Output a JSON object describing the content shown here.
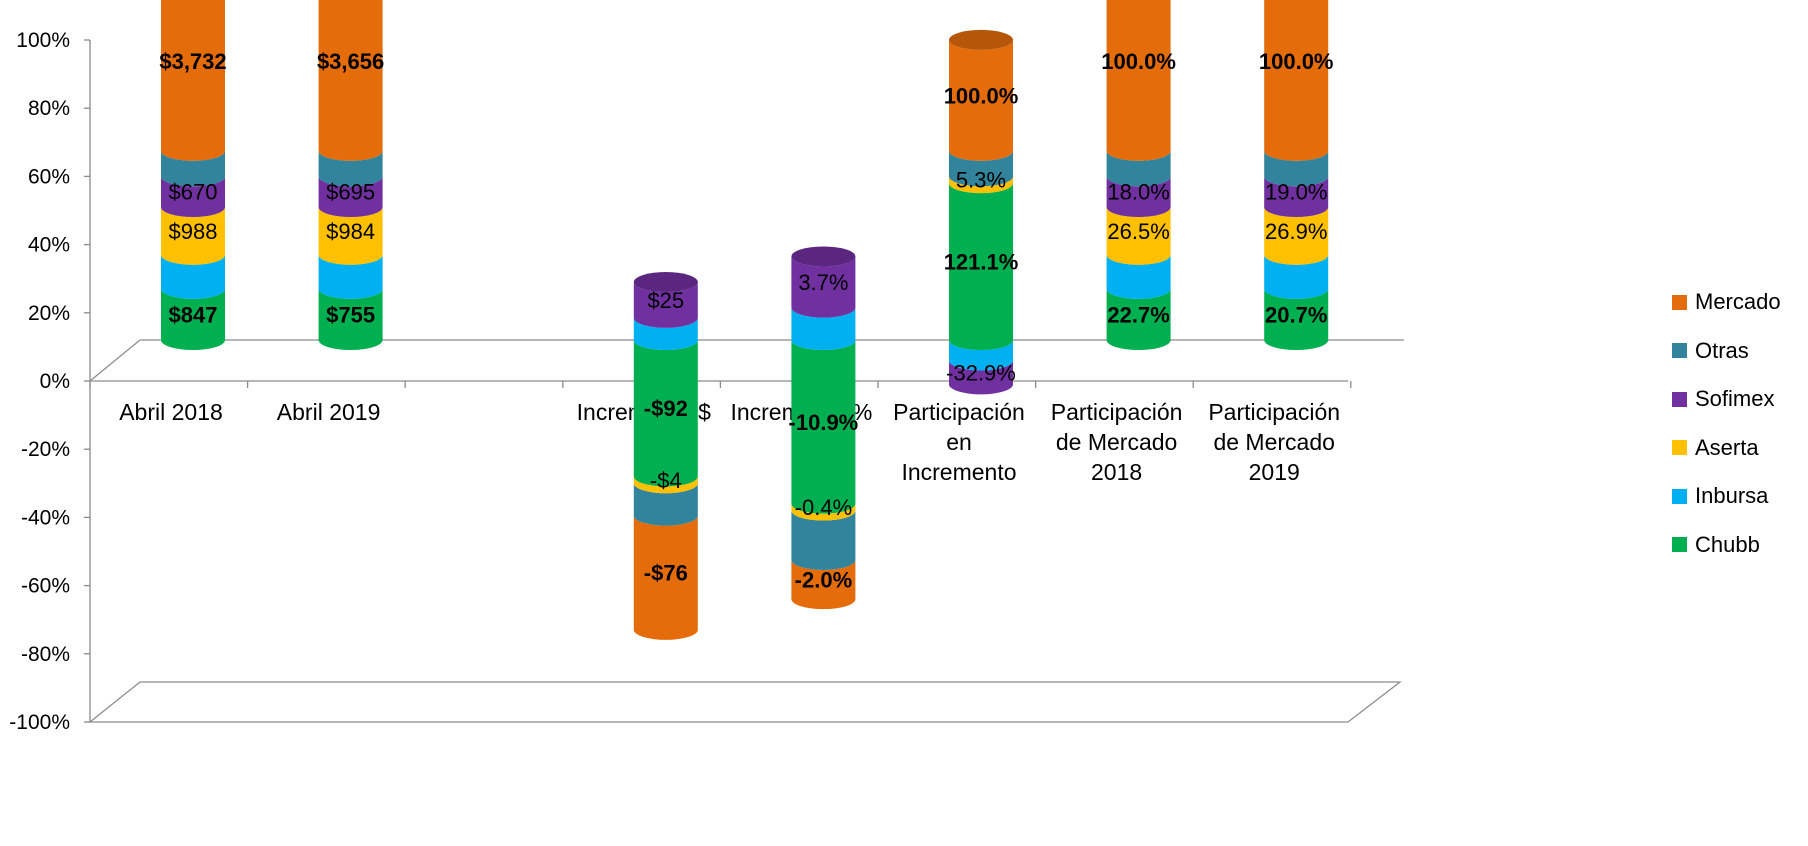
{
  "chart_data": {
    "type": "bar",
    "categories": [
      [
        "Abril 2018"
      ],
      [
        "Abril 2019"
      ],
      [
        ""
      ],
      [
        "Incremento $"
      ],
      [
        "Incremento %"
      ],
      [
        "Participación",
        "en",
        "Incremento"
      ],
      [
        "Participación",
        "de Mercado",
        "2018"
      ],
      [
        "Participación",
        "de Mercado",
        "2019"
      ]
    ],
    "y_ticks": [
      "100%",
      "80%",
      "60%",
      "40%",
      "20%",
      "0%",
      "-20%",
      "-40%",
      "-60%",
      "-80%",
      "-100%"
    ],
    "ylim": [
      -100,
      100
    ],
    "stacked": true,
    "series": [
      {
        "name": "Chubb",
        "color": "#00B050",
        "values": [
          15.0,
          15.0,
          null,
          -40.0,
          -48.0,
          46.0,
          15.0,
          15.0
        ]
      },
      {
        "name": "Inbursa",
        "color": "#00B0F0",
        "values": [
          10.0,
          10.0,
          null,
          6.5,
          9.5,
          -6.0,
          10.0,
          10.0
        ]
      },
      {
        "name": "Aserta",
        "color": "#FFC000",
        "values": [
          14.0,
          14.0,
          null,
          -2.0,
          -2.0,
          2.0,
          14.0,
          14.0
        ]
      },
      {
        "name": "Sofimex",
        "color": "#7030A0",
        "values": [
          9.0,
          9.0,
          null,
          10.5,
          15.0,
          -7.0,
          9.0,
          9.0
        ]
      },
      {
        "name": "Otras",
        "color": "#31849B",
        "values": [
          7.5,
          7.5,
          null,
          -9.5,
          -14.5,
          7.5,
          7.5,
          7.5
        ]
      },
      {
        "name": "Mercado",
        "color": "#E46C0A",
        "values": [
          52.5,
          52.5,
          null,
          -33.5,
          -11.5,
          32.5,
          52.5,
          52.5
        ]
      }
    ],
    "data_labels": [
      {
        "series": "Mercado",
        "labels": [
          "$3,732",
          "$3,656",
          "",
          "-$76",
          "-2.0%",
          "100.0%",
          "100.0%",
          "100.0%"
        ],
        "bold": true
      },
      {
        "series": "Otras",
        "labels": [
          "",
          "",
          "",
          "",
          "",
          "",
          "",
          ""
        ],
        "bold": false
      },
      {
        "series": "Sofimex",
        "labels": [
          "$670",
          "$695",
          "",
          "$25",
          "3.7%",
          "-32.9%",
          "18.0%",
          "19.0%"
        ],
        "bold": false
      },
      {
        "series": "Aserta",
        "labels": [
          "$988",
          "$984",
          "",
          "-$4",
          "-0.4%",
          "5.3%",
          "26.5%",
          "26.9%"
        ],
        "bold": false
      },
      {
        "series": "Inbursa",
        "labels": [
          "",
          "",
          "",
          "",
          "",
          "",
          "",
          ""
        ],
        "bold": false
      },
      {
        "series": "Chubb",
        "labels": [
          "$847",
          "$755",
          "",
          "-$92",
          "-10.9%",
          "121.1%",
          "22.7%",
          "20.7%"
        ],
        "bold": true
      }
    ],
    "legend": [
      "Mercado",
      "Otras",
      "Sofimex",
      "Aserta",
      "Inbursa",
      "Chubb"
    ],
    "legend_position": "right",
    "grid": false
  }
}
